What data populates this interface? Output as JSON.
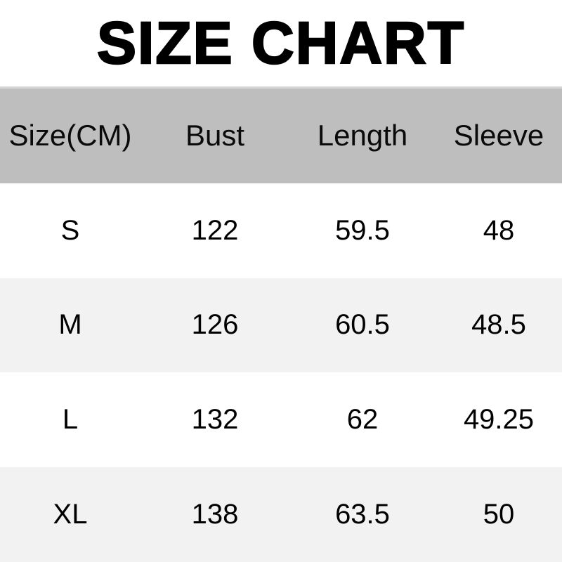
{
  "title": "SIZE CHART",
  "chart_data": {
    "type": "table",
    "title": "SIZE CHART",
    "unit": "CM",
    "columns": [
      "Size(CM)",
      "Bust",
      "Length",
      "Sleeve"
    ],
    "rows": [
      [
        "S",
        "122",
        "59.5",
        "48"
      ],
      [
        "M",
        "126",
        "60.5",
        "48.5"
      ],
      [
        "L",
        "132",
        "62",
        "49.25"
      ],
      [
        "XL",
        "138",
        "63.5",
        "50"
      ]
    ]
  },
  "colors": {
    "header_bg": "#bebebe",
    "header_top_border": "#d8d8d8",
    "row_bg": "#ffffff",
    "row_alt_bg": "#f2f2f2",
    "text": "#000000"
  }
}
